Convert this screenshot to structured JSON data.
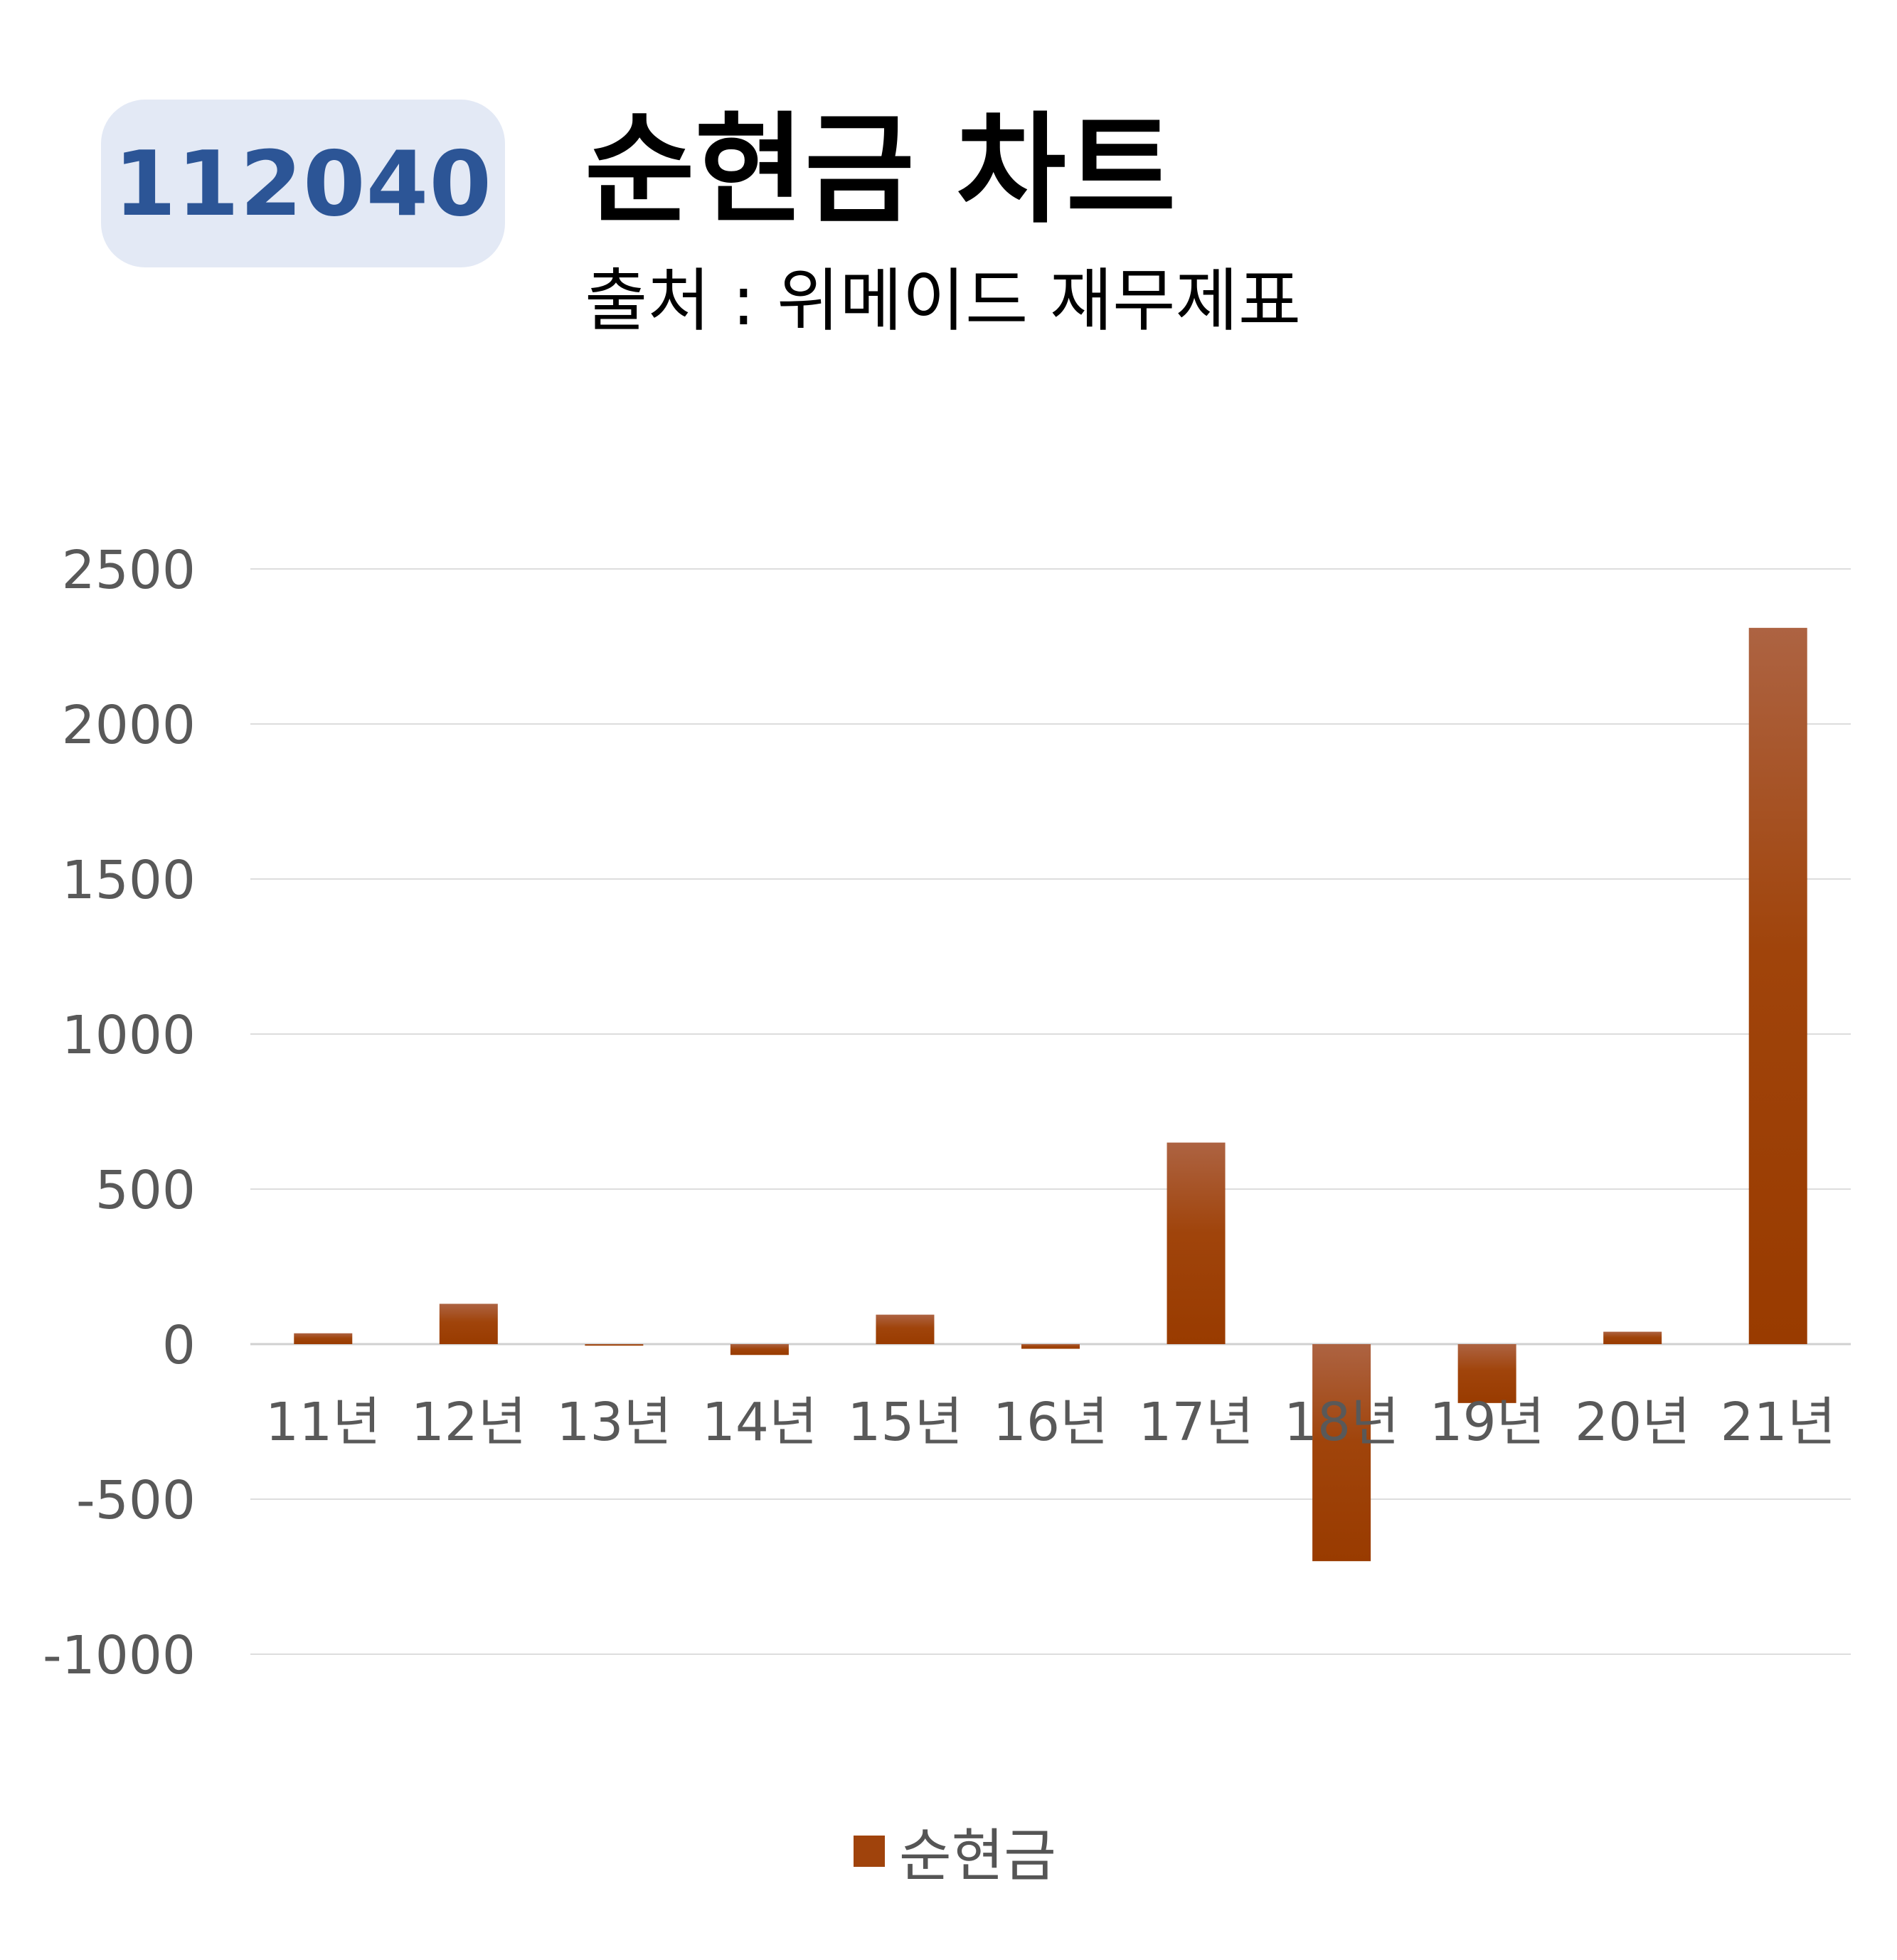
{
  "header": {
    "code": "112040",
    "title": "순현금 차트",
    "subtitle": "출처 : 위메이드 재무제표"
  },
  "chart_data": {
    "type": "bar",
    "title": "순현금 차트",
    "subtitle": "출처 : 위메이드 재무제표",
    "xlabel": "",
    "ylabel": "",
    "categories": [
      "11년",
      "12년",
      "13년",
      "14년",
      "15년",
      "16년",
      "17년",
      "18년",
      "19년",
      "20년",
      "21년"
    ],
    "series": [
      {
        "name": "순현금",
        "values": [
          35,
          130,
          -5,
          -35,
          95,
          -15,
          650,
          -700,
          -190,
          40,
          2310
        ]
      }
    ],
    "ylim": [
      -1000,
      2500
    ],
    "yticks": [
      2500,
      2000,
      1500,
      1000,
      500,
      0,
      -500,
      -1000
    ],
    "grid": true,
    "legend": "bottom",
    "colors": {
      "bar_top": "#ad6342",
      "bar_bottom": "#9a3c03",
      "grid": "#dddddd",
      "axis_text": "#595959"
    }
  }
}
